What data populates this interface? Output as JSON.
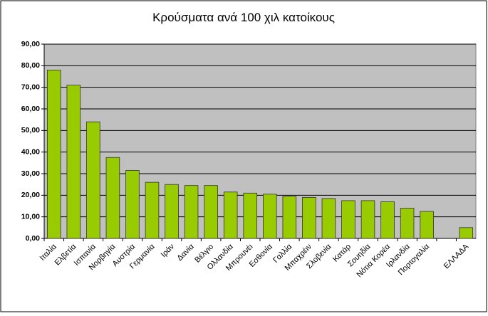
{
  "chart_data": {
    "type": "bar",
    "title": "Κρούσματα ανά 100 χιλ κατοίκους",
    "categories": [
      "Ιταλία",
      "Ελβετία",
      "Ισπανία",
      "Νορβηγία",
      "Αυστρία",
      "Γερμανία",
      "Ιράν",
      "Δανία",
      "Βέλγιο",
      "Ολλανδία",
      "Μπρουνέι",
      "Εσθονία",
      "Γαλλία",
      "Μπαχρέιν",
      "Σλοβενία",
      "Κατάρ",
      "Σουηδία",
      "Νότια Κορέα",
      "Ιρλανδία",
      "Πορτογαλία",
      null,
      "ΕΛΛΑΔΑ"
    ],
    "values": [
      78,
      71,
      54,
      37.5,
      31.5,
      26,
      25,
      24.5,
      24.5,
      21.5,
      21,
      20.5,
      19.5,
      19,
      18.5,
      17.5,
      17.5,
      17,
      14,
      12.5,
      null,
      5
    ],
    "color": "#99cc00",
    "ylim": [
      0,
      90
    ],
    "yticks": [
      {
        "value": 0,
        "label": "0,00"
      },
      {
        "value": 10,
        "label": "10,00"
      },
      {
        "value": 20,
        "label": "20,00"
      },
      {
        "value": 30,
        "label": "30,00"
      },
      {
        "value": 40,
        "label": "40,00"
      },
      {
        "value": 50,
        "label": "50,00"
      },
      {
        "value": 60,
        "label": "60,00"
      },
      {
        "value": 70,
        "label": "70,00"
      },
      {
        "value": 80,
        "label": "80,00"
      },
      {
        "value": 90,
        "label": "90,00"
      }
    ],
    "grid": true
  }
}
